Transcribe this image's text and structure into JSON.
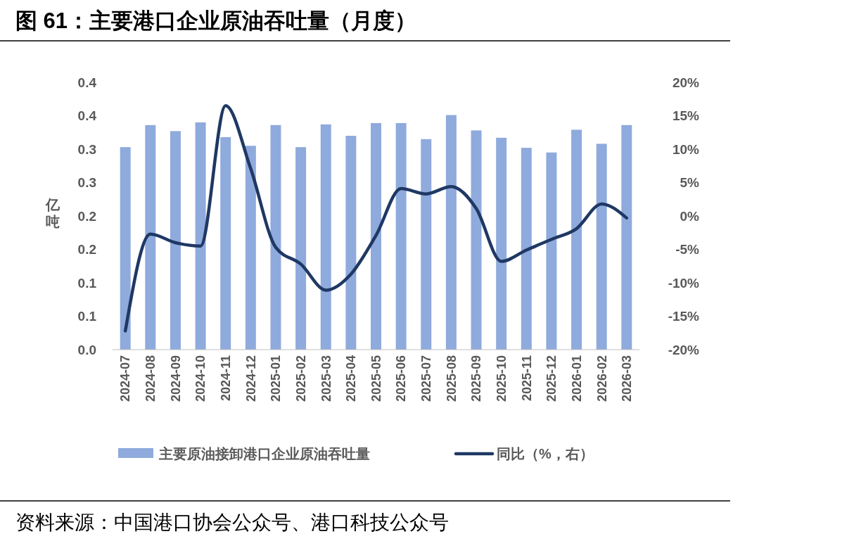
{
  "chart_data": {
    "type": "bar",
    "title": "图 61：主要港口企业原油吞吐量（月度）",
    "ylabel": "亿吨",
    "legend": "bottom",
    "annotations": [
      "资料来源：中国港口协会公众号、港口科技公众号"
    ],
    "categories": [
      "2024-07",
      "2024-08",
      "2024-09",
      "2024-10",
      "2024-11",
      "2024-12",
      "2025-01",
      "2025-02",
      "2025-03",
      "2025-04",
      "2025-05",
      "2025-06",
      "2025-07",
      "2025-08",
      "2025-09",
      "2025-10",
      "2025-11",
      "2025-12",
      "2026-01",
      "2026-02",
      "2026-03"
    ],
    "series": [
      {
        "name": "主要原油接卸港口企业原油吞吐量",
        "color": "#8faadc",
        "values": [
          0.303,
          0.336,
          0.327,
          0.34,
          0.318,
          0.305,
          0.336,
          0.303,
          0.337,
          0.32,
          0.339,
          0.339,
          0.315,
          0.351,
          0.328,
          0.317,
          0.302,
          0.295,
          0.329,
          0.308,
          0.336
        ]
      },
      {
        "name": "同比（%，右）",
        "type": "line",
        "axis": "y2",
        "color": "#1f3864",
        "values": [
          -17.2,
          -2.7,
          -4.0,
          -4.5,
          16.5,
          7.1,
          -4.7,
          -7.2,
          -11.1,
          -8.7,
          -2.9,
          4.1,
          3.3,
          4.4,
          1.1,
          -6.8,
          -5.1,
          -3.5,
          -1.9,
          1.8,
          -0.3
        ]
      }
    ],
    "ylim": [
      0,
      0.4
    ],
    "yticks": [
      {
        "value": 0,
        "label": "0.0"
      },
      {
        "value": 0.05,
        "label": "0.1"
      },
      {
        "value": 0.1,
        "label": "0.1"
      },
      {
        "value": 0.15,
        "label": "0.2"
      },
      {
        "value": 0.2,
        "label": "0.2"
      },
      {
        "value": 0.25,
        "label": "0.3"
      },
      {
        "value": 0.3,
        "label": "0.3"
      },
      {
        "value": 0.35,
        "label": "0.4"
      },
      {
        "value": 0.4,
        "label": "0.4"
      }
    ],
    "y2lim": [
      -20,
      20
    ],
    "y2ticks": [
      {
        "value": -20,
        "label": "-20%"
      },
      {
        "value": -15,
        "label": "-15%"
      },
      {
        "value": -10,
        "label": "-10%"
      },
      {
        "value": -5,
        "label": "-5%"
      },
      {
        "value": 0,
        "label": "0%"
      },
      {
        "value": 5,
        "label": "5%"
      },
      {
        "value": 10,
        "label": "10%"
      },
      {
        "value": 15,
        "label": "15%"
      },
      {
        "value": 20,
        "label": "20%"
      }
    ]
  }
}
